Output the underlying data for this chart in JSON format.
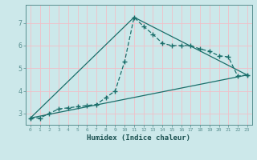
{
  "xlabel": "Humidex (Indice chaleur)",
  "bg_color": "#cce8ea",
  "grid_color": "#f0c0c8",
  "line_color": "#1a6e6a",
  "xlim": [
    -0.5,
    23.5
  ],
  "ylim": [
    2.5,
    7.8
  ],
  "yticks": [
    3,
    4,
    5,
    6,
    7
  ],
  "xticks": [
    0,
    1,
    2,
    3,
    4,
    5,
    6,
    7,
    8,
    9,
    10,
    11,
    12,
    13,
    14,
    15,
    16,
    17,
    18,
    19,
    20,
    21,
    22,
    23
  ],
  "line1_x": [
    0,
    1,
    2,
    3,
    4,
    5,
    6,
    7,
    8,
    9,
    10,
    11,
    12,
    13,
    14,
    15,
    16,
    17,
    18,
    19,
    20,
    21,
    22,
    23
  ],
  "line1_y": [
    2.8,
    2.8,
    3.0,
    3.2,
    3.25,
    3.3,
    3.35,
    3.4,
    3.7,
    4.0,
    5.3,
    7.25,
    6.85,
    6.5,
    6.1,
    6.0,
    6.0,
    6.0,
    5.85,
    5.75,
    5.55,
    5.5,
    4.65,
    4.7
  ],
  "line2_x": [
    0,
    23
  ],
  "line2_y": [
    2.8,
    4.7
  ],
  "line3_x": [
    0,
    11,
    23
  ],
  "line3_y": [
    2.8,
    7.25,
    4.7
  ]
}
